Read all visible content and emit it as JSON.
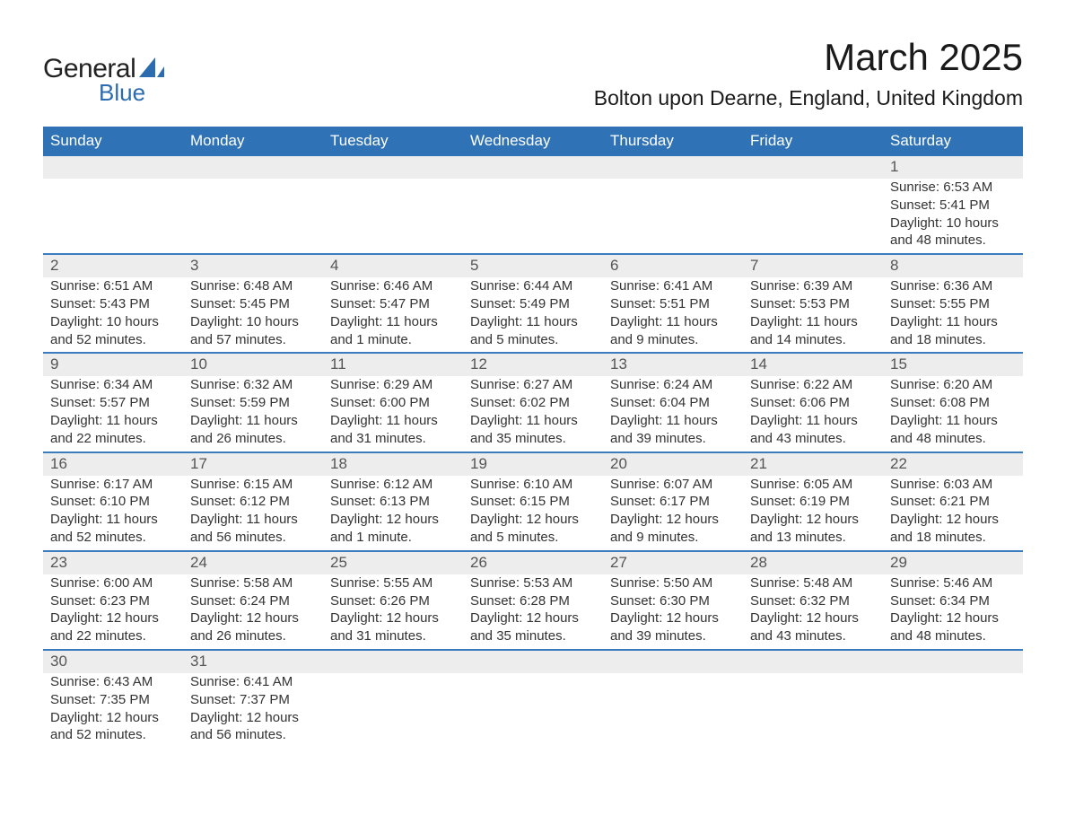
{
  "logo": {
    "text_main": "General",
    "text_sub": "Blue",
    "color_main": "#222222",
    "color_sub": "#2b6cb0",
    "sail_color": "#2b6cb0"
  },
  "header": {
    "month": "March 2025",
    "location": "Bolton upon Dearne, England, United Kingdom"
  },
  "styling": {
    "header_bg": "#2f72b6",
    "header_fg": "#ffffff",
    "daynum_bg": "#ededed",
    "row_divider": "#3b7cbf",
    "text_color": "#333333",
    "page_bg": "#ffffff",
    "title_fontsize": 42,
    "location_fontsize": 23,
    "header_fontsize": 17,
    "cell_fontsize": 15
  },
  "day_names": [
    "Sunday",
    "Monday",
    "Tuesday",
    "Wednesday",
    "Thursday",
    "Friday",
    "Saturday"
  ],
  "weeks": [
    [
      null,
      null,
      null,
      null,
      null,
      null,
      {
        "n": "1",
        "sr": "Sunrise: 6:53 AM",
        "ss": "Sunset: 5:41 PM",
        "d1": "Daylight: 10 hours",
        "d2": "and 48 minutes."
      }
    ],
    [
      {
        "n": "2",
        "sr": "Sunrise: 6:51 AM",
        "ss": "Sunset: 5:43 PM",
        "d1": "Daylight: 10 hours",
        "d2": "and 52 minutes."
      },
      {
        "n": "3",
        "sr": "Sunrise: 6:48 AM",
        "ss": "Sunset: 5:45 PM",
        "d1": "Daylight: 10 hours",
        "d2": "and 57 minutes."
      },
      {
        "n": "4",
        "sr": "Sunrise: 6:46 AM",
        "ss": "Sunset: 5:47 PM",
        "d1": "Daylight: 11 hours",
        "d2": "and 1 minute."
      },
      {
        "n": "5",
        "sr": "Sunrise: 6:44 AM",
        "ss": "Sunset: 5:49 PM",
        "d1": "Daylight: 11 hours",
        "d2": "and 5 minutes."
      },
      {
        "n": "6",
        "sr": "Sunrise: 6:41 AM",
        "ss": "Sunset: 5:51 PM",
        "d1": "Daylight: 11 hours",
        "d2": "and 9 minutes."
      },
      {
        "n": "7",
        "sr": "Sunrise: 6:39 AM",
        "ss": "Sunset: 5:53 PM",
        "d1": "Daylight: 11 hours",
        "d2": "and 14 minutes."
      },
      {
        "n": "8",
        "sr": "Sunrise: 6:36 AM",
        "ss": "Sunset: 5:55 PM",
        "d1": "Daylight: 11 hours",
        "d2": "and 18 minutes."
      }
    ],
    [
      {
        "n": "9",
        "sr": "Sunrise: 6:34 AM",
        "ss": "Sunset: 5:57 PM",
        "d1": "Daylight: 11 hours",
        "d2": "and 22 minutes."
      },
      {
        "n": "10",
        "sr": "Sunrise: 6:32 AM",
        "ss": "Sunset: 5:59 PM",
        "d1": "Daylight: 11 hours",
        "d2": "and 26 minutes."
      },
      {
        "n": "11",
        "sr": "Sunrise: 6:29 AM",
        "ss": "Sunset: 6:00 PM",
        "d1": "Daylight: 11 hours",
        "d2": "and 31 minutes."
      },
      {
        "n": "12",
        "sr": "Sunrise: 6:27 AM",
        "ss": "Sunset: 6:02 PM",
        "d1": "Daylight: 11 hours",
        "d2": "and 35 minutes."
      },
      {
        "n": "13",
        "sr": "Sunrise: 6:24 AM",
        "ss": "Sunset: 6:04 PM",
        "d1": "Daylight: 11 hours",
        "d2": "and 39 minutes."
      },
      {
        "n": "14",
        "sr": "Sunrise: 6:22 AM",
        "ss": "Sunset: 6:06 PM",
        "d1": "Daylight: 11 hours",
        "d2": "and 43 minutes."
      },
      {
        "n": "15",
        "sr": "Sunrise: 6:20 AM",
        "ss": "Sunset: 6:08 PM",
        "d1": "Daylight: 11 hours",
        "d2": "and 48 minutes."
      }
    ],
    [
      {
        "n": "16",
        "sr": "Sunrise: 6:17 AM",
        "ss": "Sunset: 6:10 PM",
        "d1": "Daylight: 11 hours",
        "d2": "and 52 minutes."
      },
      {
        "n": "17",
        "sr": "Sunrise: 6:15 AM",
        "ss": "Sunset: 6:12 PM",
        "d1": "Daylight: 11 hours",
        "d2": "and 56 minutes."
      },
      {
        "n": "18",
        "sr": "Sunrise: 6:12 AM",
        "ss": "Sunset: 6:13 PM",
        "d1": "Daylight: 12 hours",
        "d2": "and 1 minute."
      },
      {
        "n": "19",
        "sr": "Sunrise: 6:10 AM",
        "ss": "Sunset: 6:15 PM",
        "d1": "Daylight: 12 hours",
        "d2": "and 5 minutes."
      },
      {
        "n": "20",
        "sr": "Sunrise: 6:07 AM",
        "ss": "Sunset: 6:17 PM",
        "d1": "Daylight: 12 hours",
        "d2": "and 9 minutes."
      },
      {
        "n": "21",
        "sr": "Sunrise: 6:05 AM",
        "ss": "Sunset: 6:19 PM",
        "d1": "Daylight: 12 hours",
        "d2": "and 13 minutes."
      },
      {
        "n": "22",
        "sr": "Sunrise: 6:03 AM",
        "ss": "Sunset: 6:21 PM",
        "d1": "Daylight: 12 hours",
        "d2": "and 18 minutes."
      }
    ],
    [
      {
        "n": "23",
        "sr": "Sunrise: 6:00 AM",
        "ss": "Sunset: 6:23 PM",
        "d1": "Daylight: 12 hours",
        "d2": "and 22 minutes."
      },
      {
        "n": "24",
        "sr": "Sunrise: 5:58 AM",
        "ss": "Sunset: 6:24 PM",
        "d1": "Daylight: 12 hours",
        "d2": "and 26 minutes."
      },
      {
        "n": "25",
        "sr": "Sunrise: 5:55 AM",
        "ss": "Sunset: 6:26 PM",
        "d1": "Daylight: 12 hours",
        "d2": "and 31 minutes."
      },
      {
        "n": "26",
        "sr": "Sunrise: 5:53 AM",
        "ss": "Sunset: 6:28 PM",
        "d1": "Daylight: 12 hours",
        "d2": "and 35 minutes."
      },
      {
        "n": "27",
        "sr": "Sunrise: 5:50 AM",
        "ss": "Sunset: 6:30 PM",
        "d1": "Daylight: 12 hours",
        "d2": "and 39 minutes."
      },
      {
        "n": "28",
        "sr": "Sunrise: 5:48 AM",
        "ss": "Sunset: 6:32 PM",
        "d1": "Daylight: 12 hours",
        "d2": "and 43 minutes."
      },
      {
        "n": "29",
        "sr": "Sunrise: 5:46 AM",
        "ss": "Sunset: 6:34 PM",
        "d1": "Daylight: 12 hours",
        "d2": "and 48 minutes."
      }
    ],
    [
      {
        "n": "30",
        "sr": "Sunrise: 6:43 AM",
        "ss": "Sunset: 7:35 PM",
        "d1": "Daylight: 12 hours",
        "d2": "and 52 minutes."
      },
      {
        "n": "31",
        "sr": "Sunrise: 6:41 AM",
        "ss": "Sunset: 7:37 PM",
        "d1": "Daylight: 12 hours",
        "d2": "and 56 minutes."
      },
      null,
      null,
      null,
      null,
      null
    ]
  ]
}
